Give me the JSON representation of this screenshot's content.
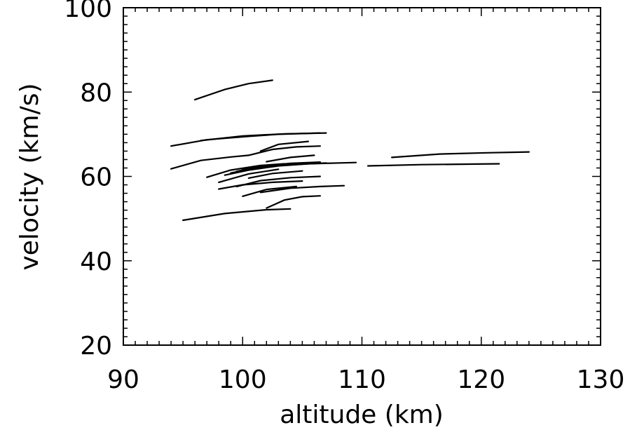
{
  "chart_data": {
    "type": "line",
    "xlabel": "altitude (km)",
    "ylabel": "velocity (km/s)",
    "xlim": [
      90,
      130
    ],
    "ylim": [
      20,
      100
    ],
    "xticks": [
      90,
      100,
      110,
      120,
      130
    ],
    "yticks": [
      20,
      40,
      60,
      80,
      100
    ],
    "grid": false,
    "series": [
      {
        "x": [
          96.0,
          98.5,
          100.5,
          102.5
        ],
        "y": [
          78.2,
          80.6,
          82.0,
          82.8
        ]
      },
      {
        "x": [
          94.0,
          97.0,
          100.5,
          103.0,
          106.5
        ],
        "y": [
          67.2,
          68.7,
          69.5,
          70.0,
          70.3
        ]
      },
      {
        "x": [
          96.5,
          100.0,
          103.5,
          107.0
        ],
        "y": [
          68.5,
          69.6,
          70.1,
          70.3
        ]
      },
      {
        "x": [
          94.0,
          96.5,
          99.0,
          100.5
        ],
        "y": [
          61.8,
          63.8,
          64.6,
          65.0
        ]
      },
      {
        "x": [
          101.5,
          103.0,
          105.5
        ],
        "y": [
          66.0,
          67.6,
          68.3
        ]
      },
      {
        "x": [
          100.5,
          102.5,
          104.5,
          106.5
        ],
        "y": [
          65.0,
          66.4,
          67.0,
          67.2
        ]
      },
      {
        "x": [
          102.0,
          104.0,
          106.0
        ],
        "y": [
          63.5,
          64.5,
          65.0
        ]
      },
      {
        "x": [
          97.0,
          99.0,
          101.5,
          103.5
        ],
        "y": [
          59.8,
          61.5,
          62.6,
          63.0
        ]
      },
      {
        "x": [
          98.5,
          100.5,
          103.0,
          105.5,
          107.0
        ],
        "y": [
          60.3,
          61.5,
          62.5,
          63.0,
          63.2
        ]
      },
      {
        "x": [
          99.0,
          101.0,
          103.5,
          106.0
        ],
        "y": [
          60.8,
          62.0,
          62.8,
          63.3
        ]
      },
      {
        "x": [
          99.5,
          101.5,
          104.0,
          106.5
        ],
        "y": [
          61.2,
          62.4,
          63.1,
          63.4
        ]
      },
      {
        "x": [
          100.0,
          102.5,
          105.5,
          109.5
        ],
        "y": [
          61.6,
          62.5,
          63.0,
          63.3
        ]
      },
      {
        "x": [
          98.0,
          100.5,
          103.0
        ],
        "y": [
          58.6,
          60.6,
          61.7
        ]
      },
      {
        "x": [
          100.5,
          102.5,
          105.0
        ],
        "y": [
          59.6,
          60.7,
          61.3
        ]
      },
      {
        "x": [
          99.5,
          101.5,
          104.0,
          106.5
        ],
        "y": [
          57.6,
          59.0,
          59.7,
          60.0
        ]
      },
      {
        "x": [
          98.0,
          100.0,
          102.5,
          105.0
        ],
        "y": [
          57.0,
          58.0,
          58.6,
          58.9
        ]
      },
      {
        "x": [
          100.0,
          102.0,
          104.5
        ],
        "y": [
          55.3,
          56.9,
          57.6
        ]
      },
      {
        "x": [
          101.5,
          104.0,
          106.5,
          108.5
        ],
        "y": [
          56.2,
          57.2,
          57.6,
          57.8
        ]
      },
      {
        "x": [
          102.0,
          103.5,
          105.0,
          106.5
        ],
        "y": [
          52.5,
          54.4,
          55.2,
          55.4
        ]
      },
      {
        "x": [
          95.0,
          98.5,
          102.0,
          104.0
        ],
        "y": [
          49.6,
          51.2,
          52.1,
          52.3
        ]
      },
      {
        "x": [
          110.5,
          115.0,
          121.5
        ],
        "y": [
          62.5,
          62.8,
          63.0
        ]
      },
      {
        "x": [
          112.5,
          116.5,
          120.5,
          124.0
        ],
        "y": [
          64.5,
          65.3,
          65.6,
          65.8
        ]
      }
    ]
  }
}
